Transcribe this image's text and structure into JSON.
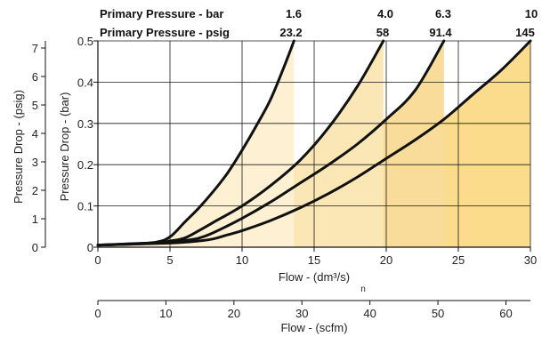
{
  "chart_data": {
    "type": "line",
    "header": {
      "bar_label": "Primary Pressure - bar",
      "psig_label": "Primary Pressure - psig"
    },
    "x_flow": {
      "label": "Flow - (dm³/s)",
      "label_sub": "n",
      "xlim": [
        0,
        30
      ],
      "ticks": [
        "0",
        "5",
        "10",
        "15",
        "20",
        "25",
        "30"
      ]
    },
    "x_scfm": {
      "label": "Flow - (scfm)",
      "xlim": [
        0,
        63.6
      ],
      "ticks": [
        "0",
        "10",
        "20",
        "30",
        "40",
        "50",
        "60"
      ]
    },
    "y_bar": {
      "label": "Pressure Drop - (bar)",
      "ylim": [
        0,
        0.5
      ],
      "ticks": [
        "0",
        "0.1",
        "0.2",
        "0.3",
        "0.4",
        "0.5"
      ]
    },
    "y_psig": {
      "label": "Pressure Drop - (psig)",
      "ylim": [
        0,
        7.25
      ],
      "ticks": [
        "0",
        "1",
        "2",
        "3",
        "4",
        "5",
        "6",
        "7"
      ]
    },
    "series": [
      {
        "bar": "1.6",
        "psig": "23.2",
        "x": [
          0,
          2,
          4,
          5,
          6,
          7,
          8,
          9,
          10,
          11,
          12,
          13,
          13.6
        ],
        "y": [
          0.005,
          0.008,
          0.012,
          0.025,
          0.06,
          0.095,
          0.135,
          0.18,
          0.235,
          0.295,
          0.36,
          0.445,
          0.5
        ],
        "fill_end": 13.6,
        "fill": "#fdf0d3"
      },
      {
        "bar": "4.0",
        "psig": "58",
        "x": [
          0,
          4,
          5,
          6,
          7,
          8,
          10,
          12,
          14,
          16,
          18,
          19.8
        ],
        "y": [
          0.005,
          0.01,
          0.015,
          0.022,
          0.04,
          0.06,
          0.1,
          0.15,
          0.21,
          0.29,
          0.39,
          0.5
        ],
        "fill_end": 19.8,
        "fill": "#fbe6b5"
      },
      {
        "bar": "6.3",
        "psig": "91.4",
        "x": [
          0,
          5,
          6,
          7,
          8,
          10,
          12,
          14,
          16,
          18,
          20,
          22,
          24
        ],
        "y": [
          0.005,
          0.012,
          0.016,
          0.022,
          0.035,
          0.07,
          0.11,
          0.155,
          0.2,
          0.25,
          0.31,
          0.38,
          0.5
        ],
        "fill_end": 24,
        "fill": "#f9dc99"
      },
      {
        "bar": "10",
        "psig": "145",
        "x": [
          0,
          5,
          7,
          8,
          9,
          10,
          12,
          14,
          16,
          18,
          20,
          22,
          24,
          26,
          28,
          30
        ],
        "y": [
          0.005,
          0.01,
          0.015,
          0.02,
          0.03,
          0.04,
          0.065,
          0.095,
          0.13,
          0.17,
          0.215,
          0.26,
          0.31,
          0.37,
          0.43,
          0.5
        ],
        "fill_end": 30,
        "fill": "#fbdc8c"
      }
    ]
  }
}
